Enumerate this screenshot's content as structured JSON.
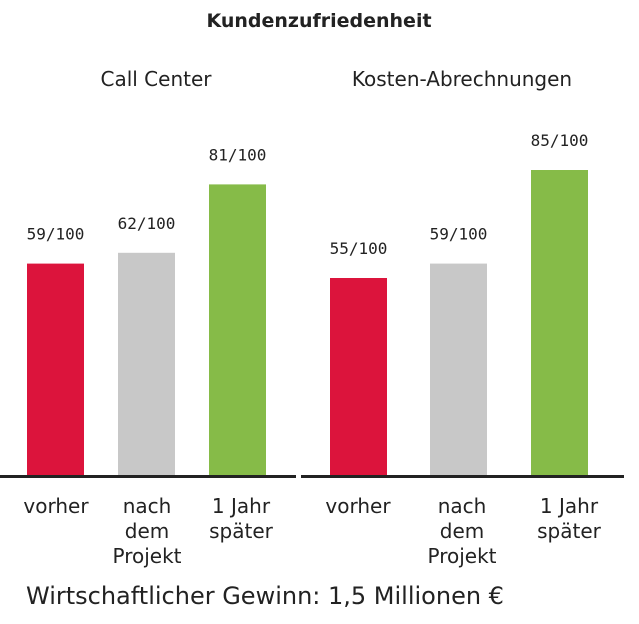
{
  "chart_data": {
    "title": "Kundenzufriedenheit",
    "footer": "Wirtschaftlicher Gewinn: 1,5 Millionen €",
    "type": "bar",
    "ylim": [
      0,
      100
    ],
    "grid": false,
    "legend": "none",
    "colors": {
      "vorher": "#dc143c",
      "nach": "#c8c8c8",
      "später": "#86bb48",
      "axis": "#222222",
      "text": "#222222"
    },
    "panels": [
      {
        "title": "Call Center",
        "bars": [
          {
            "category": "vorher",
            "category_lines": [
              "vorher"
            ],
            "value": 59,
            "label": "59/100",
            "color_key": "vorher"
          },
          {
            "category": "nach dem Projekt",
            "category_lines": [
              "nach",
              "dem",
              "Projekt"
            ],
            "value": 62,
            "label": "62/100",
            "color_key": "nach"
          },
          {
            "category": "1 Jahr später",
            "category_lines": [
              "1 Jahr",
              "später"
            ],
            "value": 81,
            "label": "81/100",
            "color_key": "später"
          }
        ]
      },
      {
        "title": "Kosten-Abrechnungen",
        "bars": [
          {
            "category": "vorher",
            "category_lines": [
              "vorher"
            ],
            "value": 55,
            "label": "55/100",
            "color_key": "vorher"
          },
          {
            "category": "nach dem Projekt",
            "category_lines": [
              "nach",
              "dem",
              "Projekt"
            ],
            "value": 59,
            "label": "59/100",
            "color_key": "nach"
          },
          {
            "category": "1 Jahr später",
            "category_lines": [
              "1 Jahr",
              "später"
            ],
            "value": 85,
            "label": "85/100",
            "color_key": "später"
          }
        ]
      }
    ]
  }
}
